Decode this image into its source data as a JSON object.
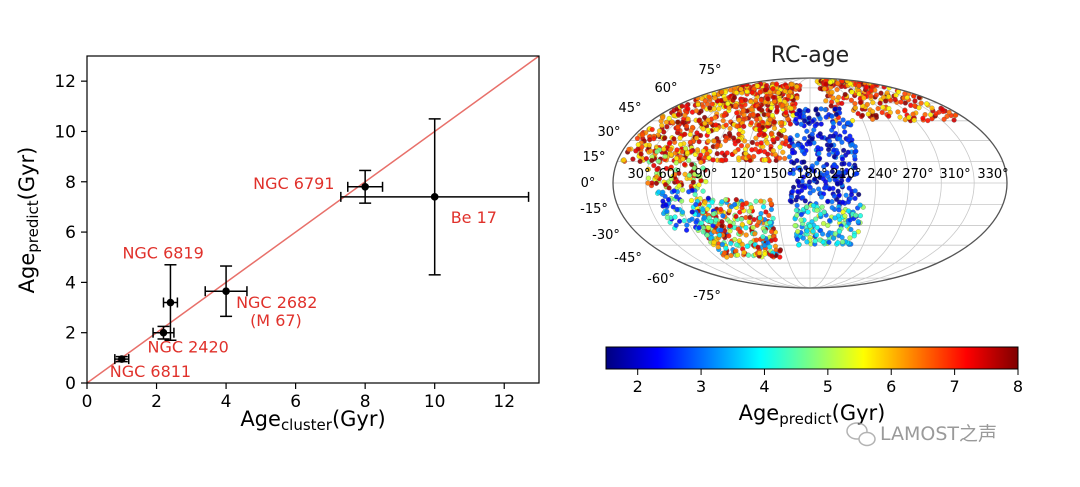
{
  "chart_data": [
    {
      "type": "scatter",
      "xlabel": "Age",
      "xlabel_sub": "cluster",
      "xlabel_unit": "(Gyr)",
      "ylabel": "Age",
      "ylabel_sub": "predict",
      "ylabel_unit": "(Gyr)",
      "xlim": [
        0,
        13
      ],
      "ylim": [
        0,
        13
      ],
      "xticks": [
        0,
        2,
        4,
        6,
        8,
        10,
        12
      ],
      "yticks": [
        0,
        2,
        4,
        6,
        8,
        10,
        12
      ],
      "reference_line": "y = x",
      "colors": {
        "points": "#000000",
        "labels": "#e0312b",
        "line": "#e8706a"
      },
      "points": [
        {
          "name": "NGC 6811",
          "x": 1.0,
          "y": 0.95,
          "xerr": 0.2,
          "yerr": 0.1
        },
        {
          "name": "NGC 2420",
          "x": 2.2,
          "y": 2.0,
          "xerr": 0.3,
          "yerr": 0.25
        },
        {
          "name": "NGC 6819",
          "x": 2.4,
          "y": 3.2,
          "xerr": 0.2,
          "yerr": 1.5
        },
        {
          "name": "NGC 2682",
          "name2": "(M 67)",
          "x": 4.0,
          "y": 3.65,
          "xerr": 0.6,
          "yerr": 1.0
        },
        {
          "name": "NGC 6791",
          "x": 8.0,
          "y": 7.8,
          "xerr": 0.5,
          "yerr": 0.65
        },
        {
          "name": "Be 17",
          "x": 10.0,
          "y": 7.4,
          "xerr": 2.7,
          "yerr": 3.1
        }
      ]
    },
    {
      "type": "map",
      "projection": "mollweide",
      "title": "RC-age",
      "lat_labels": [
        "75°",
        "60°",
        "45°",
        "30°",
        "15°",
        "0°",
        "-15°",
        "-30°",
        "-45°",
        "-60°",
        "-75°"
      ],
      "lon_labels": [
        "30°",
        "60°",
        "90°",
        "120°",
        "150°",
        "180°",
        "210°",
        "240°",
        "270°",
        "310°",
        "330°"
      ],
      "colorbar": {
        "label": "Age",
        "label_sub": "predict",
        "label_unit": "(Gyr)",
        "min": 1.5,
        "max": 8,
        "ticks": [
          2,
          3,
          4,
          5,
          6,
          7,
          8
        ],
        "colors": [
          "#00007f",
          "#0000ff",
          "#007fff",
          "#00ffff",
          "#7fff7f",
          "#ffff00",
          "#ff7f00",
          "#ff0000",
          "#7f0000"
        ]
      }
    }
  ],
  "watermark": "LAMOST之声"
}
